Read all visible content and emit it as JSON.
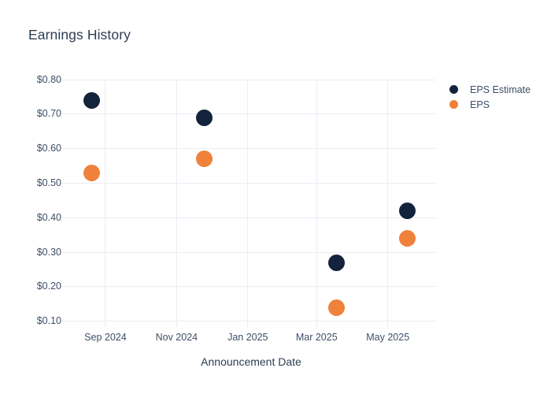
{
  "chart": {
    "title": "Earnings History",
    "x_axis_title": "Announcement Date"
  },
  "colors": {
    "background": "#ffffff",
    "title_text": "#2c3e54",
    "axis_text": "#3f4f67",
    "grid": "#e9edf4",
    "eps_estimate": "#14233c",
    "eps": "#ef813a"
  },
  "legend": {
    "items": [
      {
        "label": "EPS Estimate",
        "color": "#14233c"
      },
      {
        "label": "EPS",
        "color": "#ef813a"
      }
    ]
  },
  "chart_data": {
    "type": "scatter",
    "title": "Earnings History",
    "xlabel": "Announcement Date",
    "ylabel": "",
    "grid": true,
    "legend_position": "right",
    "x_range": [
      "2024-07-30",
      "2025-06-11"
    ],
    "ylim": [
      0.0835,
      0.8
    ],
    "x_ticks": [
      {
        "label": "Sep 2024",
        "date": "2024-09-01"
      },
      {
        "label": "Nov 2024",
        "date": "2024-11-01"
      },
      {
        "label": "Jan 2025",
        "date": "2025-01-01"
      },
      {
        "label": "Mar 2025",
        "date": "2025-03-01"
      },
      {
        "label": "May 2025",
        "date": "2025-05-01"
      }
    ],
    "y_ticks": [
      {
        "label": "$0.80",
        "value": 0.8
      },
      {
        "label": "$0.70",
        "value": 0.7
      },
      {
        "label": "$0.60",
        "value": 0.6
      },
      {
        "label": "$0.50",
        "value": 0.5
      },
      {
        "label": "$0.40",
        "value": 0.4
      },
      {
        "label": "$0.30",
        "value": 0.3
      },
      {
        "label": "$0.20",
        "value": 0.2
      },
      {
        "label": "$0.10",
        "value": 0.1
      }
    ],
    "series": [
      {
        "name": "EPS Estimate",
        "color": "#14233c",
        "points": [
          {
            "date": "2024-08-20",
            "value": 0.74
          },
          {
            "date": "2024-11-25",
            "value": 0.69
          },
          {
            "date": "2025-03-18",
            "value": 0.27
          },
          {
            "date": "2025-05-18",
            "value": 0.42
          }
        ]
      },
      {
        "name": "EPS",
        "color": "#ef813a",
        "points": [
          {
            "date": "2024-08-20",
            "value": 0.53
          },
          {
            "date": "2024-11-25",
            "value": 0.57
          },
          {
            "date": "2025-03-18",
            "value": 0.14
          },
          {
            "date": "2025-05-18",
            "value": 0.34
          }
        ]
      }
    ]
  }
}
